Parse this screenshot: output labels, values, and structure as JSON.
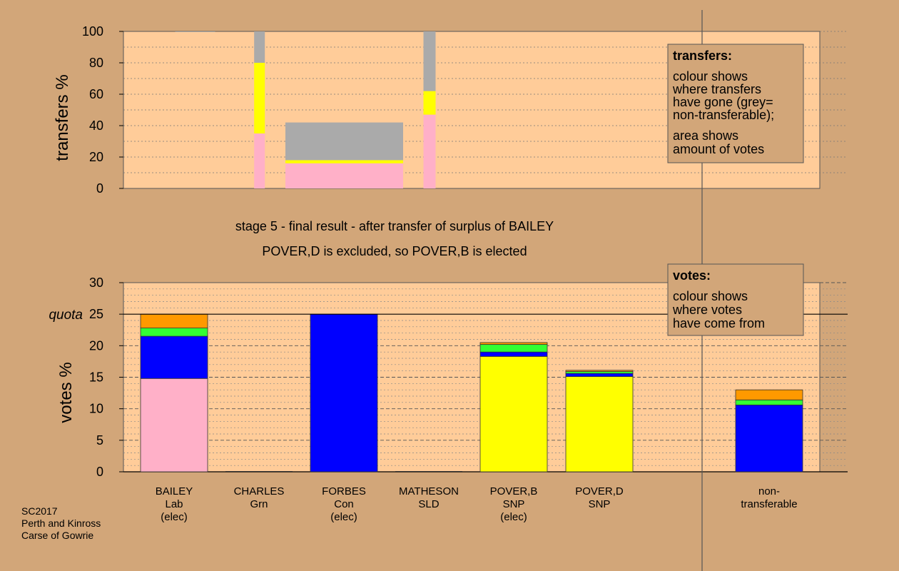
{
  "chart_data": [
    {
      "type": "bar",
      "name": "transfers",
      "ylabel": "transfers %",
      "ylim": [
        0,
        100
      ],
      "yticks": [
        0,
        20,
        40,
        60,
        80,
        100
      ],
      "transfers": [
        {
          "from": "BAILEY",
          "width_votes": 0,
          "segments": [
            {
              "color": "#AAAAAA",
              "value": 100
            }
          ]
        },
        {
          "from": "CHARLES",
          "width_votes": 0.4,
          "segments": [
            {
              "color": "#FFB0C8",
              "value": 35
            },
            {
              "color": "#FFFF00",
              "value": 45
            },
            {
              "color": "#AAAAAA",
              "value": 20
            }
          ]
        },
        {
          "from": "MATHESON",
          "width_votes": 4.9,
          "segments": [
            {
              "color": "#FFB0C8",
              "value": 16
            },
            {
              "color": "#FFFF00",
              "value": 2
            },
            {
              "color": "#AAAAAA",
              "value": 24
            }
          ]
        },
        {
          "from": "POVER,D",
          "width_votes": 0.5,
          "segments": [
            {
              "color": "#FFB0C8",
              "value": 47
            },
            {
              "color": "#FFFF00",
              "value": 15
            },
            {
              "color": "#AAAAAA",
              "value": 38
            }
          ]
        }
      ],
      "legend": {
        "title": "transfers:",
        "lines": [
          "colour shows",
          "where transfers",
          "have gone (grey=",
          "non-transferable);",
          "area shows",
          "amount of votes"
        ]
      }
    },
    {
      "type": "bar",
      "name": "votes",
      "ylabel": "votes %",
      "ylim": [
        0,
        30
      ],
      "yticks": [
        0,
        5,
        10,
        15,
        20,
        25,
        30
      ],
      "quota": 25,
      "quota_label": "quota",
      "candidates": [
        {
          "label": [
            "BAILEY",
            "Lab",
            "(elec)"
          ],
          "segments": [
            {
              "color": "#FFB0C8",
              "value": 14.8
            },
            {
              "color": "#0000FF",
              "value": 6.7
            },
            {
              "color": "#33FF33",
              "value": 1.3
            },
            {
              "color": "#FF9900",
              "value": 2.2
            }
          ]
        },
        {
          "label": [
            "CHARLES",
            "Grn"
          ],
          "segments": []
        },
        {
          "label": [
            "FORBES",
            "Con",
            "(elec)"
          ],
          "segments": [
            {
              "color": "#0000FF",
              "value": 25
            }
          ]
        },
        {
          "label": [
            "MATHESON",
            "SLD"
          ],
          "segments": []
        },
        {
          "label": [
            "POVER,B",
            "SNP",
            "(elec)"
          ],
          "segments": [
            {
              "color": "#FFFF00",
              "value": 18.3
            },
            {
              "color": "#0000FF",
              "value": 0.7
            },
            {
              "color": "#33FF33",
              "value": 1.2
            },
            {
              "color": "#FF9900",
              "value": 0.3
            }
          ]
        },
        {
          "label": [
            "POVER,D",
            "SNP"
          ],
          "segments": [
            {
              "color": "#FFFF00",
              "value": 15.1
            },
            {
              "color": "#0000FF",
              "value": 0.5
            },
            {
              "color": "#33FF33",
              "value": 0.3
            },
            {
              "color": "#FF9900",
              "value": 0.2
            }
          ]
        },
        {
          "label": [
            "non-",
            "transferable"
          ],
          "segments": [
            {
              "color": "#0000FF",
              "value": 10.6
            },
            {
              "color": "#33FF33",
              "value": 0.8
            },
            {
              "color": "#FF9900",
              "value": 1.6
            }
          ]
        }
      ],
      "legend": {
        "title": "votes:",
        "lines": [
          "colour shows",
          "where votes",
          "have come from"
        ]
      }
    }
  ],
  "caption": {
    "line1": "stage 5 - final result - after transfer of surplus of BAILEY",
    "line2": "POVER,D is excluded, so POVER,B is elected"
  },
  "footnote": [
    "SC2017",
    "Perth and Kinross",
    "Carse of Gowrie"
  ],
  "colors": {
    "background": "#D2A679",
    "plot_area": "#FFCC99"
  }
}
